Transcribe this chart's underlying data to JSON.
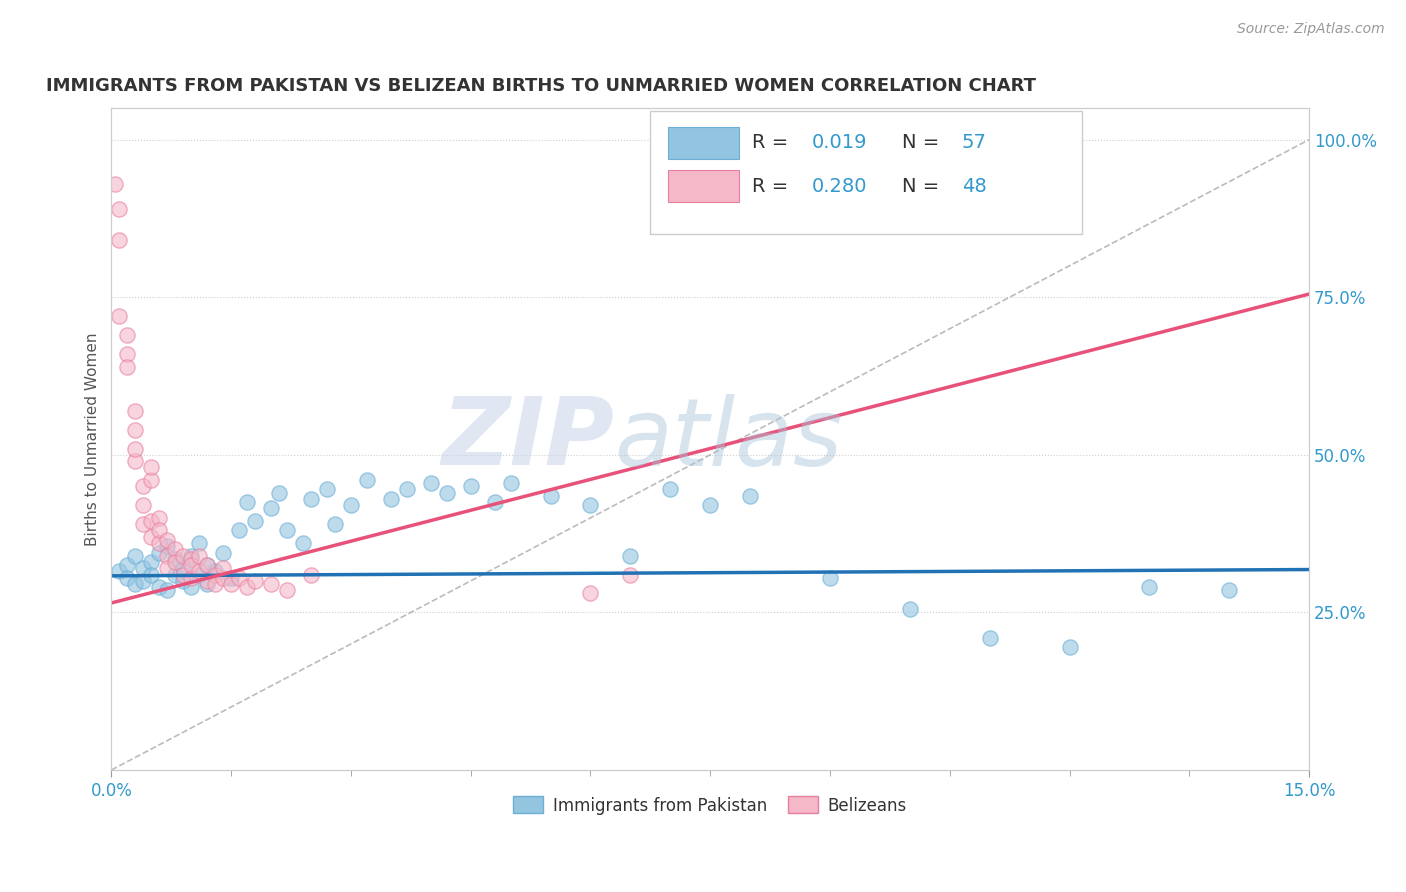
{
  "title": "IMMIGRANTS FROM PAKISTAN VS BELIZEAN BIRTHS TO UNMARRIED WOMEN CORRELATION CHART",
  "source": "Source: ZipAtlas.com",
  "ylabel": "Births to Unmarried Women",
  "xlim": [
    0.0,
    0.15
  ],
  "ylim": [
    0.0,
    1.05
  ],
  "xticks": [
    0.0,
    0.15
  ],
  "xticklabels": [
    "0.0%",
    "15.0%"
  ],
  "yticks_right": [
    0.25,
    0.5,
    0.75,
    1.0
  ],
  "yticklabels_right": [
    "25.0%",
    "50.0%",
    "75.0%",
    "100.0%"
  ],
  "color_blue": "#93c4e0",
  "color_blue_edge": "#6baed6",
  "color_pink": "#f4b8c8",
  "color_pink_edge": "#e87fa0",
  "color_trend_blue": "#2171b5",
  "color_trend_pink": "#e8527a",
  "watermark_zip": "ZIP",
  "watermark_atlas": "atlas",
  "bg_color": "#ffffff",
  "grid_color": "#d0d0d0",
  "blue_scatter_x": [
    0.001,
    0.002,
    0.002,
    0.003,
    0.003,
    0.004,
    0.004,
    0.005,
    0.005,
    0.006,
    0.006,
    0.007,
    0.007,
    0.008,
    0.008,
    0.009,
    0.009,
    0.01,
    0.01,
    0.011,
    0.011,
    0.012,
    0.012,
    0.013,
    0.014,
    0.015,
    0.016,
    0.017,
    0.018,
    0.02,
    0.021,
    0.022,
    0.024,
    0.025,
    0.027,
    0.028,
    0.03,
    0.032,
    0.035,
    0.037,
    0.04,
    0.042,
    0.045,
    0.048,
    0.05,
    0.055,
    0.06,
    0.065,
    0.07,
    0.075,
    0.08,
    0.09,
    0.1,
    0.11,
    0.12,
    0.13,
    0.14
  ],
  "blue_scatter_y": [
    0.315,
    0.325,
    0.305,
    0.34,
    0.295,
    0.32,
    0.3,
    0.33,
    0.31,
    0.345,
    0.29,
    0.355,
    0.285,
    0.31,
    0.335,
    0.3,
    0.32,
    0.34,
    0.29,
    0.31,
    0.36,
    0.325,
    0.295,
    0.315,
    0.345,
    0.305,
    0.38,
    0.425,
    0.395,
    0.415,
    0.44,
    0.38,
    0.36,
    0.43,
    0.445,
    0.39,
    0.42,
    0.46,
    0.43,
    0.445,
    0.455,
    0.44,
    0.45,
    0.425,
    0.455,
    0.435,
    0.42,
    0.34,
    0.445,
    0.42,
    0.435,
    0.305,
    0.255,
    0.21,
    0.195,
    0.29,
    0.285
  ],
  "pink_scatter_x": [
    0.0005,
    0.001,
    0.001,
    0.001,
    0.002,
    0.002,
    0.002,
    0.003,
    0.003,
    0.003,
    0.003,
    0.004,
    0.004,
    0.004,
    0.005,
    0.005,
    0.005,
    0.005,
    0.006,
    0.006,
    0.006,
    0.007,
    0.007,
    0.007,
    0.008,
    0.008,
    0.009,
    0.009,
    0.01,
    0.01,
    0.01,
    0.011,
    0.011,
    0.012,
    0.012,
    0.013,
    0.013,
    0.014,
    0.014,
    0.015,
    0.016,
    0.017,
    0.018,
    0.02,
    0.022,
    0.025,
    0.06,
    0.065
  ],
  "pink_scatter_y": [
    0.93,
    0.89,
    0.84,
    0.72,
    0.66,
    0.69,
    0.64,
    0.54,
    0.57,
    0.49,
    0.51,
    0.42,
    0.45,
    0.39,
    0.46,
    0.48,
    0.395,
    0.37,
    0.36,
    0.4,
    0.38,
    0.34,
    0.365,
    0.32,
    0.35,
    0.33,
    0.34,
    0.31,
    0.335,
    0.305,
    0.325,
    0.315,
    0.34,
    0.3,
    0.325,
    0.31,
    0.295,
    0.305,
    0.32,
    0.295,
    0.305,
    0.29,
    0.3,
    0.295,
    0.285,
    0.31,
    0.28,
    0.31
  ],
  "blue_trend_x": [
    0.0,
    0.15
  ],
  "blue_trend_y": [
    0.308,
    0.318
  ],
  "pink_trend_x": [
    0.0,
    0.15
  ],
  "pink_trend_y": [
    0.265,
    0.755
  ],
  "ref_line_x": [
    0.0,
    0.15
  ],
  "ref_line_y": [
    0.0,
    1.0
  ]
}
